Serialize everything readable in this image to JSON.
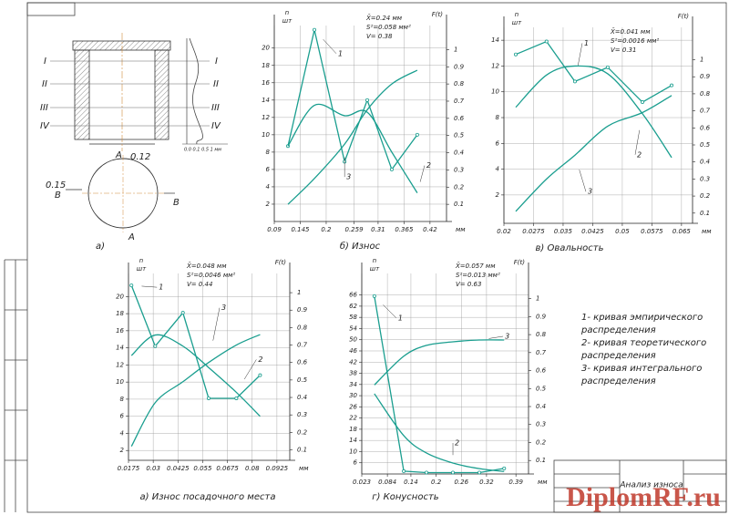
{
  "chart_data": [
    {
      "type": "line",
      "caption": "б) Износ",
      "stats": [
        "X̄=0.24 мм",
        "S²=0.058 мм²",
        "V= 0.38"
      ],
      "ylabel": [
        "n",
        "шт"
      ],
      "y2label": "F(t)",
      "xlabel": "мм",
      "grid": true,
      "x": [
        0.119,
        0.175,
        0.239,
        0.287,
        0.339,
        0.393
      ],
      "xlim": [
        0.09,
        0.455
      ],
      "xticks": [
        0.09,
        0.145,
        0.2,
        0.259,
        0.31,
        0.365,
        0.42
      ],
      "ylim": [
        0,
        22.6
      ],
      "yticks": [
        2,
        4,
        6,
        8,
        10,
        12,
        14,
        16,
        18,
        20
      ],
      "y2lim": [
        0,
        1.14
      ],
      "y2ticks": [
        0.1,
        0.2,
        0.3,
        0.4,
        0.5,
        0.6,
        0.7,
        0.8,
        0.9,
        1
      ],
      "series": [
        {
          "name": "1",
          "color": "#1a9e8f",
          "markers": true,
          "smooth": false,
          "values": [
            8.7,
            22.1,
            6.9,
            14,
            6,
            10
          ]
        },
        {
          "name": "2",
          "color": "#1a9e8f",
          "markers": false,
          "smooth": true,
          "values": [
            8.7,
            13.4,
            12.2,
            12.6,
            8,
            3.3
          ]
        },
        {
          "name": "3",
          "color": "#1a9e8f",
          "markers": false,
          "smooth": true,
          "axis": "y2",
          "values": [
            0.1,
            0.25,
            0.45,
            0.65,
            0.8,
            0.88
          ]
        }
      ]
    },
    {
      "type": "line",
      "caption": "в) Овальность",
      "stats": [
        "X̄=0.041 мм",
        "S²=0.0016 мм²",
        "V= 0.31"
      ],
      "ylabel": [
        "n",
        "шт"
      ],
      "y2label": "F(t)",
      "xlabel": "мм",
      "grid": true,
      "x": [
        0.023,
        0.0308,
        0.038,
        0.0463,
        0.0551,
        0.0625
      ],
      "xlim": [
        0.02,
        0.0678
      ],
      "xticks": [
        0.02,
        0.0275,
        0.035,
        0.0425,
        0.05,
        0.0575,
        0.065
      ],
      "ylim": [
        -0.2,
        15
      ],
      "yticks": [
        2,
        4,
        6,
        8,
        10,
        12,
        14
      ],
      "y2lim": [
        0.04,
        1.19
      ],
      "y2ticks": [
        0.1,
        0.2,
        0.3,
        0.4,
        0.5,
        0.6,
        0.7,
        0.8,
        0.9,
        1
      ],
      "series": [
        {
          "name": "1",
          "color": "#1a9e8f",
          "markers": true,
          "smooth": false,
          "values": [
            12.9,
            13.9,
            10.8,
            11.9,
            9.2,
            10.5
          ]
        },
        {
          "name": "2",
          "color": "#1a9e8f",
          "markers": false,
          "smooth": true,
          "values": [
            8.8,
            11.3,
            12,
            11.4,
            8.3,
            4.9
          ]
        },
        {
          "name": "3",
          "color": "#1a9e8f",
          "markers": false,
          "smooth": true,
          "axis": "y2",
          "values": [
            0.11,
            0.3,
            0.44,
            0.61,
            0.69,
            0.79
          ]
        }
      ]
    },
    {
      "type": "line",
      "caption": "а) Износ посадочного места",
      "stats": [
        "X̄=0.048 мм",
        "S²=0.0046 мм²",
        "V= 0.44"
      ],
      "ylabel": [
        "n",
        "шт"
      ],
      "y2label": "F(t)",
      "xlabel": "мм",
      "grid": true,
      "x": [
        0.019,
        0.031,
        0.045,
        0.058,
        0.072,
        0.084
      ],
      "xlim": [
        0.0175,
        0.099
      ],
      "xticks": [
        0.0175,
        0.03,
        0.0425,
        0.055,
        0.0675,
        0.08,
        0.0925
      ],
      "ylim": [
        0.85,
        22.7
      ],
      "yticks": [
        2,
        4,
        6,
        8,
        10,
        12,
        14,
        16,
        18,
        20
      ],
      "y2lim": [
        0.04,
        1.11
      ],
      "y2ticks": [
        0.1,
        0.2,
        0.3,
        0.4,
        0.5,
        0.6,
        0.7,
        0.8,
        0.9,
        1
      ],
      "series": [
        {
          "name": "1",
          "color": "#1a9e8f",
          "markers": true,
          "smooth": false,
          "values": [
            21.3,
            14.2,
            18.1,
            8.1,
            8.1,
            10.8
          ]
        },
        {
          "name": "2",
          "color": "#1a9e8f",
          "markers": false,
          "smooth": true,
          "values": [
            13.1,
            15.5,
            14.2,
            11.7,
            8.8,
            6
          ]
        },
        {
          "name": "3",
          "color": "#1a9e8f",
          "markers": false,
          "smooth": true,
          "axis": "y2",
          "values": [
            0.12,
            0.37,
            0.49,
            0.6,
            0.7,
            0.76
          ]
        }
      ]
    },
    {
      "type": "line",
      "caption": "г) Конусность",
      "stats": [
        "X̄=0.057 мм",
        "S²=0.013 мм²",
        "V= 0.63"
      ],
      "ylabel": [
        "n",
        "шт"
      ],
      "y2label": "F(t)",
      "xlabel": "мм",
      "grid": true,
      "x": [
        0.053,
        0.123,
        0.177,
        0.24,
        0.303,
        0.362
      ],
      "xlim": [
        0.023,
        0.42
      ],
      "xticks": [
        0.023,
        0.084,
        0.14,
        0.2,
        0.26,
        0.32,
        0.39
      ],
      "ylim": [
        2,
        73.7
      ],
      "yticks": [
        6,
        10,
        14,
        18,
        22,
        26,
        30,
        34,
        38,
        42,
        46,
        50,
        54,
        58,
        62,
        66
      ],
      "y2lim": [
        0.025,
        1.14
      ],
      "y2ticks": [
        0.1,
        0.2,
        0.3,
        0.4,
        0.5,
        0.6,
        0.7,
        0.8,
        0.9,
        1
      ],
      "series": [
        {
          "name": "1",
          "color": "#1a9e8f",
          "markers": true,
          "smooth": false,
          "values": [
            65.6,
            3,
            2.5,
            2.5,
            2.5,
            4
          ]
        },
        {
          "name": "2",
          "color": "#1a9e8f",
          "markers": false,
          "smooth": true,
          "values": [
            30.7,
            15.7,
            9.5,
            5.9,
            3.9,
            2.9
          ]
        },
        {
          "name": "3",
          "color": "#1a9e8f",
          "markers": false,
          "smooth": true,
          "axis": "y2",
          "values": [
            0.52,
            0.68,
            0.74,
            0.76,
            0.77,
            0.77
          ]
        }
      ]
    }
  ],
  "sketch": {
    "caption": "а)",
    "sections": [
      "I",
      "II",
      "III",
      "IV"
    ],
    "section_a": "A",
    "section_b": "B",
    "dim_a": "0.12",
    "dim_b": "0.15",
    "scale": "0.0 0.1 0.5 1 мм"
  },
  "legend_note": {
    "lines": [
      "1- кривая эмпирического",
      "распределения",
      "2- кривая теоретического",
      "распределения",
      "3- кривая интегрального",
      "распределения"
    ]
  },
  "title_block": {
    "title": "Анализ износа"
  },
  "watermark": "DiplomRF.ru"
}
